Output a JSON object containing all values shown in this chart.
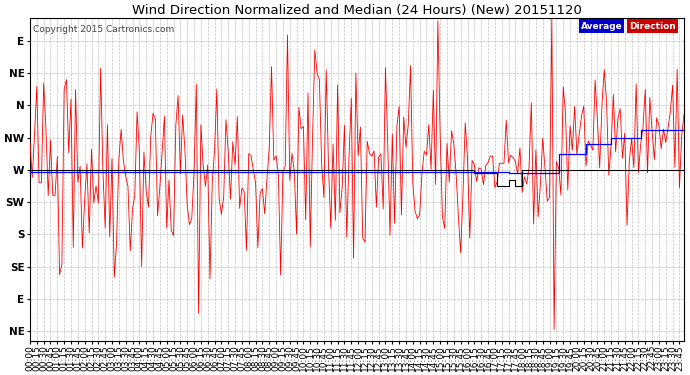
{
  "title": "Wind Direction Normalized and Median (24 Hours) (New) 20151120",
  "copyright": "Copyright 2015 Cartronics.com",
  "legend_avg_color": "#0000cc",
  "legend_dir_color": "#cc0000",
  "legend_avg_label": "Average",
  "legend_dir_label": "Direction",
  "background_color": "#ffffff",
  "plot_bg_color": "#ffffff",
  "grid_color": "#b0b0b0",
  "red_line_color": "#ff0000",
  "blue_line_color": "#0000ff",
  "black_line_color": "#000000",
  "ytick_labels": [
    "E",
    "NE",
    "N",
    "NW",
    "W",
    "SW",
    "S",
    "SE",
    "E",
    "NE"
  ],
  "ytick_values": [
    9,
    8,
    7,
    6,
    5,
    4,
    3,
    2,
    1,
    0
  ],
  "ylim": [
    -0.3,
    9.7
  ],
  "n_points": 288,
  "title_fontsize": 9.5,
  "tick_fontsize": 6.5,
  "copyright_fontsize": 6.5
}
